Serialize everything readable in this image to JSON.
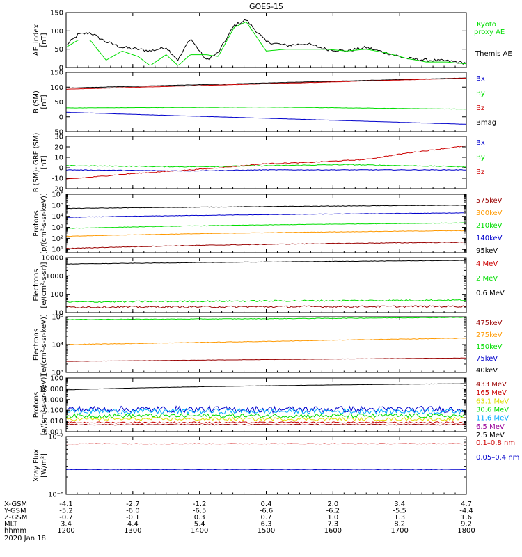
{
  "title": "GOES-15",
  "colors": {
    "black": "#000000",
    "green": "#00dd00",
    "blue": "#0000cc",
    "red": "#cc0000",
    "darkred": "#990000",
    "orange": "#ff9900",
    "cyan": "#00aaff",
    "yellow": "#dddd00",
    "purple": "#990099",
    "gray": "#666666"
  },
  "x_axis": {
    "rows": [
      {
        "label": "X-GSM",
        "values": [
          "-4.1",
          "-2.7",
          "-1.2",
          "0.4",
          "2.0",
          "3.4",
          "4.7"
        ]
      },
      {
        "label": "Y-GSM",
        "values": [
          "-5.2",
          "-6.0",
          "-6.5",
          "-6.6",
          "-6.2",
          "-5.5",
          "-4.4"
        ]
      },
      {
        "label": "Z-GSM",
        "values": [
          "-0.7",
          "-0.1",
          "0.3",
          "0.7",
          "1.0",
          "1.3",
          "1.6"
        ]
      },
      {
        "label": "MLT",
        "values": [
          "3.4",
          "4.4",
          "5.4",
          "6.3",
          "7.3",
          "8.2",
          "9.2"
        ]
      },
      {
        "label": "hhmm",
        "values": [
          "1200",
          "1300",
          "1400",
          "1500",
          "1600",
          "1700",
          "1800"
        ]
      }
    ],
    "date": "2020 Jan 18"
  },
  "chart_data": [
    {
      "type": "line",
      "ylabel": [
        "AE_index",
        "[nT]"
      ],
      "yscale": "linear",
      "ylim": [
        0,
        150
      ],
      "yticks": [
        0,
        50,
        100,
        150
      ],
      "yticklabels": [
        "0",
        "50",
        "100",
        "150"
      ],
      "legend": [
        {
          "text": "Kyoto",
          "color": "#00dd00"
        },
        {
          "text": "proxy AE",
          "color": "#00dd00"
        },
        {
          "text": "Themis AE",
          "color": "#000000"
        }
      ],
      "series": [
        {
          "name": "Themis AE",
          "color": "#000000",
          "kind": "poly",
          "noise": 4,
          "x": [
            0,
            0.03,
            0.06,
            0.1,
            0.14,
            0.18,
            0.21,
            0.25,
            0.28,
            0.31,
            0.35,
            0.38,
            0.42,
            0.45,
            0.5,
            0.55,
            0.6,
            0.65,
            0.7,
            0.75,
            0.8,
            0.85,
            0.9,
            0.95,
            1.0
          ],
          "y": [
            60,
            90,
            95,
            70,
            55,
            50,
            45,
            55,
            20,
            80,
            20,
            40,
            115,
            130,
            70,
            60,
            65,
            50,
            45,
            55,
            40,
            25,
            20,
            18,
            12
          ]
        },
        {
          "name": "Kyoto proxy AE",
          "color": "#00dd00",
          "kind": "poly",
          "noise": 0,
          "x": [
            0,
            0.03,
            0.06,
            0.1,
            0.14,
            0.18,
            0.21,
            0.25,
            0.28,
            0.31,
            0.35,
            0.38,
            0.42,
            0.45,
            0.5,
            0.55,
            0.6,
            0.65,
            0.7,
            0.75,
            0.8,
            0.85,
            0.9,
            0.95,
            1.0
          ],
          "y": [
            55,
            75,
            75,
            20,
            45,
            30,
            5,
            35,
            5,
            35,
            35,
            30,
            110,
            125,
            45,
            50,
            50,
            50,
            45,
            50,
            40,
            25,
            15,
            15,
            10
          ]
        }
      ]
    },
    {
      "type": "line",
      "ylabel": [
        "B (SM)",
        "[nT]"
      ],
      "yscale": "linear",
      "ylim": [
        -50,
        150
      ],
      "yticks": [
        -50,
        0,
        50,
        100,
        150
      ],
      "yticklabels": [
        "-50",
        "0",
        "50",
        "100",
        "150"
      ],
      "legend": [
        {
          "text": "Bx",
          "color": "#0000cc"
        },
        {
          "text": "By",
          "color": "#00dd00"
        },
        {
          "text": "Bz",
          "color": "#cc0000"
        },
        {
          "text": "Bmag",
          "color": "#000000"
        }
      ],
      "series": [
        {
          "name": "Bmag",
          "color": "#000000",
          "kind": "poly",
          "noise": 0.5,
          "x": [
            0,
            1
          ],
          "y": [
            97,
            131
          ]
        },
        {
          "name": "Bz",
          "color": "#cc0000",
          "kind": "poly",
          "noise": 0.5,
          "x": [
            0,
            1
          ],
          "y": [
            93,
            130
          ]
        },
        {
          "name": "By",
          "color": "#00dd00",
          "kind": "poly",
          "noise": 0.5,
          "x": [
            0,
            0.5,
            1
          ],
          "y": [
            30,
            33,
            26
          ]
        },
        {
          "name": "Bx",
          "color": "#0000cc",
          "kind": "poly",
          "noise": 0.3,
          "x": [
            0,
            1
          ],
          "y": [
            15,
            -25
          ]
        }
      ]
    },
    {
      "type": "line",
      "ylabel": [
        "B (SM)-IGRF (SM)",
        "[nT]"
      ],
      "yscale": "linear",
      "ylim": [
        -20,
        30
      ],
      "yticks": [
        -20,
        -10,
        0,
        10,
        20,
        30
      ],
      "yticklabels": [
        "-20",
        "-10",
        "0",
        "10",
        "20",
        "30"
      ],
      "legend": [
        {
          "text": "Bx",
          "color": "#0000cc"
        },
        {
          "text": "By",
          "color": "#00dd00"
        },
        {
          "text": "Bz",
          "color": "#cc0000"
        }
      ],
      "series": [
        {
          "name": "Bz",
          "color": "#cc0000",
          "kind": "poly",
          "noise": 0.4,
          "x": [
            0,
            0.15,
            0.35,
            0.5,
            0.6,
            0.75,
            0.85,
            1.0
          ],
          "y": [
            -11,
            -6,
            -1,
            4,
            5,
            8,
            14,
            21
          ]
        },
        {
          "name": "By",
          "color": "#00dd00",
          "kind": "poly",
          "noise": 0.4,
          "x": [
            0,
            0.3,
            0.5,
            0.7,
            1.0
          ],
          "y": [
            2,
            1,
            2,
            3,
            1
          ]
        },
        {
          "name": "Bx",
          "color": "#0000cc",
          "kind": "poly",
          "noise": 0.3,
          "x": [
            0,
            0.3,
            0.5,
            1.0
          ],
          "y": [
            -2,
            -3,
            -2,
            -2
          ]
        }
      ]
    },
    {
      "type": "line",
      "ylabel": [
        "Protons",
        "[p/(cm²-s-sr-keV)]"
      ],
      "yscale": "log",
      "ylim": [
        5,
        1000000
      ],
      "yticks": [
        10,
        100,
        1000,
        10000,
        100000,
        1000000
      ],
      "yticklabels": [
        "10¹",
        "10²",
        "10³",
        "10⁴",
        "10⁵",
        "10⁶"
      ],
      "legend": [
        {
          "text": "575keV",
          "color": "#990000"
        },
        {
          "text": "300keV",
          "color": "#ff9900"
        },
        {
          "text": "210keV",
          "color": "#00dd00"
        },
        {
          "text": "140keV",
          "color": "#0000cc"
        },
        {
          "text": "95keV",
          "color": "#000000"
        }
      ],
      "series": [
        {
          "name": "95keV",
          "color": "#000000",
          "kind": "poly",
          "noise": 0.02,
          "x": [
            0,
            1
          ],
          "y": [
            50000,
            100000
          ]
        },
        {
          "name": "140keV",
          "color": "#0000cc",
          "kind": "poly",
          "noise": 0.02,
          "x": [
            0,
            1
          ],
          "y": [
            8000,
            20000
          ]
        },
        {
          "name": "210keV",
          "color": "#00dd00",
          "kind": "poly",
          "noise": 0.02,
          "x": [
            0,
            1
          ],
          "y": [
            800,
            2500
          ]
        },
        {
          "name": "300keV",
          "color": "#ff9900",
          "kind": "poly",
          "noise": 0.02,
          "x": [
            0,
            1
          ],
          "y": [
            150,
            500
          ]
        },
        {
          "name": "575keV",
          "color": "#990000",
          "kind": "poly",
          "noise": 0.03,
          "x": [
            0,
            1
          ],
          "y": [
            12,
            45
          ]
        }
      ]
    },
    {
      "type": "line",
      "ylabel": [
        "Electrons",
        "[e/(cm²-s-sr)]"
      ],
      "yscale": "log",
      "ylim": [
        10,
        10000
      ],
      "yticks": [
        10,
        100,
        1000,
        10000
      ],
      "yticklabels": [
        "10",
        "100",
        "1000",
        "10000"
      ],
      "legend": [
        {
          "text": "4 MeV",
          "color": "#cc0000"
        },
        {
          "text": "2 MeV",
          "color": "#00dd00"
        },
        {
          "text": "0.6 MeV",
          "color": "#000000"
        }
      ],
      "series": [
        {
          "name": "0.6 MeV",
          "color": "#000000",
          "kind": "poly",
          "noise": 0.01,
          "x": [
            0,
            1
          ],
          "y": [
            4500,
            7000
          ]
        },
        {
          "name": "2 MeV",
          "color": "#00dd00",
          "kind": "poly",
          "noise": 0.04,
          "x": [
            0,
            1
          ],
          "y": [
            38,
            48
          ]
        },
        {
          "name": "4 MeV",
          "color": "#990000",
          "kind": "poly",
          "noise": 0.05,
          "x": [
            0,
            1
          ],
          "y": [
            20,
            22
          ]
        }
      ]
    },
    {
      "type": "line",
      "ylabel": [
        "Electrons",
        "[e/(cm²-s-sr-keV)]"
      ],
      "yscale": "log",
      "ylim": [
        1000,
        100000
      ],
      "yticks": [
        1000,
        10000,
        100000
      ],
      "yticklabels": [
        "10³",
        "10⁴",
        "10⁵"
      ],
      "legend": [
        {
          "text": "475keV",
          "color": "#990000"
        },
        {
          "text": "275keV",
          "color": "#ff9900"
        },
        {
          "text": "150keV",
          "color": "#00dd00"
        },
        {
          "text": "75keV",
          "color": "#0000cc"
        },
        {
          "text": "40keV",
          "color": "#000000"
        }
      ],
      "series": [
        {
          "name": "150keV",
          "color": "#00dd00",
          "kind": "poly",
          "noise": 0.01,
          "x": [
            0,
            0.5,
            1
          ],
          "y": [
            80000,
            85000,
            95000
          ]
        },
        {
          "name": "275keV",
          "color": "#ff9900",
          "kind": "poly",
          "noise": 0.01,
          "x": [
            0,
            0.5,
            1
          ],
          "y": [
            10000,
            13000,
            17000
          ]
        },
        {
          "name": "475keV",
          "color": "#990000",
          "kind": "poly",
          "noise": 0.005,
          "x": [
            0,
            1
          ],
          "y": [
            2500,
            3300
          ]
        }
      ]
    },
    {
      "type": "line",
      "ylabel": [
        "Protons",
        "[p/(cm²-s-sr-keV)]"
      ],
      "yscale": "log",
      "ylim": [
        0.001,
        100
      ],
      "yticks": [
        0.001,
        0.01,
        0.1,
        1,
        10,
        100
      ],
      "yticklabels": [
        "0.001",
        "0.010",
        "0.100",
        "1.000",
        "10.000",
        "100"
      ],
      "legend": [
        {
          "text": "433 MeV",
          "color": "#990000"
        },
        {
          "text": "165 MeV",
          "color": "#cc0000"
        },
        {
          "text": "63.1 MeV",
          "color": "#dddd00"
        },
        {
          "text": "30.6 MeV",
          "color": "#00dd00"
        },
        {
          "text": "11.6 MeV",
          "color": "#00aaff"
        },
        {
          "text": "6.5 MeV",
          "color": "#990099"
        },
        {
          "text": "2.5 MeV",
          "color": "#000000"
        }
      ],
      "series": [
        {
          "name": "2.5 MeV",
          "color": "#000000",
          "kind": "poly",
          "noise": 0.01,
          "x": [
            0,
            1
          ],
          "y": [
            8,
            30
          ]
        },
        {
          "name": "6.5 MeV",
          "color": "#0000cc",
          "kind": "poly",
          "noise": 0.3,
          "x": [
            0,
            1
          ],
          "y": [
            0.12,
            0.12
          ]
        },
        {
          "name": "11.6 MeV",
          "color": "#00aaff",
          "kind": "poly",
          "noise": 0.25,
          "x": [
            0,
            1
          ],
          "y": [
            0.08,
            0.08
          ]
        },
        {
          "name": "30.6 MeV",
          "color": "#00dd00",
          "kind": "poly",
          "noise": 0.2,
          "x": [
            0,
            1
          ],
          "y": [
            0.03,
            0.03
          ]
        },
        {
          "name": "63.1 MeV",
          "color": "#dddd00",
          "kind": "poly",
          "noise": 0.15,
          "x": [
            0,
            1
          ],
          "y": [
            0.015,
            0.015
          ]
        },
        {
          "name": "165 MeV",
          "color": "#cc0000",
          "kind": "poly",
          "noise": 0.08,
          "x": [
            0,
            1
          ],
          "y": [
            0.007,
            0.007
          ]
        },
        {
          "name": "433 MeV",
          "color": "#990000",
          "kind": "poly",
          "noise": 0.05,
          "x": [
            0,
            1
          ],
          "y": [
            0.0045,
            0.0045
          ]
        }
      ]
    },
    {
      "type": "line",
      "ylabel": [
        "Xray Flux",
        "[W/m²]"
      ],
      "yscale": "log",
      "ylim": [
        1e-08,
        1e-07
      ],
      "yticks": [
        1e-08,
        1e-07
      ],
      "yticklabels": [
        "10⁻⁸",
        "10⁻⁷"
      ],
      "legend": [
        {
          "text": "0.1–0.8 nm",
          "color": "#cc0000"
        },
        {
          "text": "0.05–0.4 nm",
          "color": "#0000cc"
        }
      ],
      "series": [
        {
          "name": "0.1–0.8 nm",
          "color": "#cc0000",
          "kind": "poly",
          "noise": 0.005,
          "x": [
            0,
            1
          ],
          "y": [
            7.5e-08,
            7.5e-08
          ]
        },
        {
          "name": "0.05–0.4 nm",
          "color": "#0000cc",
          "kind": "poly",
          "noise": 0.004,
          "x": [
            0,
            1
          ],
          "y": [
            2.7e-08,
            2.7e-08
          ]
        }
      ]
    }
  ]
}
